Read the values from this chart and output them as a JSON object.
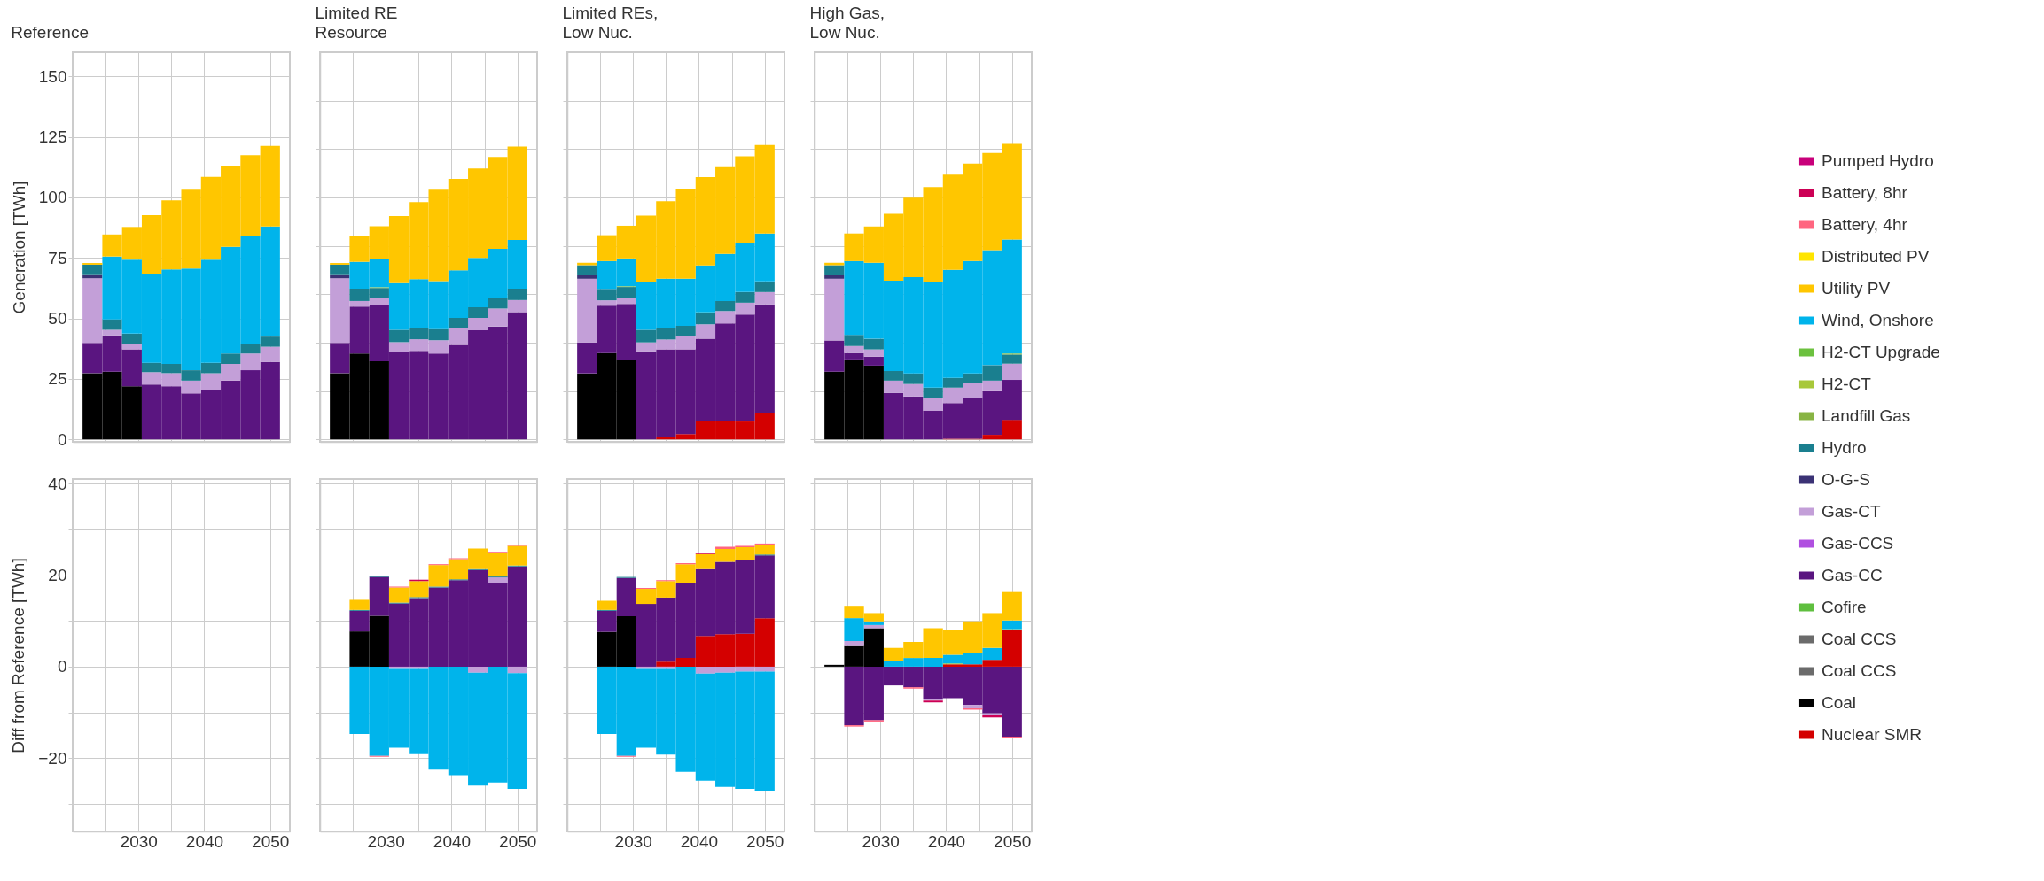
{
  "chart_data": [
    {
      "type": "bar",
      "stacked": true,
      "title": "Reference",
      "ylabel": "Generation [TWh]",
      "x": [
        2023,
        2026,
        2029,
        2032,
        2035,
        2038,
        2041,
        2044,
        2047,
        2050
      ],
      "xlim": [
        2020,
        2053
      ],
      "ylim": [
        -1,
        160
      ],
      "grid": true,
      "tick_labels": "y",
      "xticks": [
        {
          "value": 2025,
          "label": null
        },
        2030,
        {
          "value": 2035,
          "label": null
        },
        2040,
        {
          "value": 2045,
          "label": null
        },
        2050
      ],
      "yticks": [
        0,
        25,
        50,
        75,
        100,
        125,
        150
      ],
      "series": [
        {
          "color": "#000000",
          "values": [
            27.4,
            28,
            22,
            null,
            null,
            null,
            null,
            null,
            null,
            null
          ]
        },
        {
          "color": "#5a1580",
          "values": [
            12.5,
            15,
            15.2,
            22.7,
            22,
            19,
            20.4,
            24.3,
            28.6,
            32
          ]
        },
        {
          "color": "#c39fd8",
          "values": [
            26.7,
            2.3,
            2.2,
            5.1,
            5.4,
            5.3,
            7,
            6.9,
            6.9,
            6.3
          ]
        },
        {
          "color": "#3b3275",
          "values": [
            1.3,
            null,
            null,
            null,
            null,
            null,
            null,
            null,
            null,
            null
          ]
        },
        {
          "color": "#1a7f8f",
          "values": [
            4.3,
            4.3,
            4.3,
            3.9,
            3.8,
            4.3,
            4.3,
            4.3,
            3.9,
            4.2
          ]
        },
        {
          "color": "#00b4eb",
          "values": [
            null,
            26,
            30.6,
            36.6,
            39.1,
            42,
            42.6,
            44.1,
            44.6,
            45.5
          ]
        },
        {
          "color": "#ffc600",
          "values": [
            0.7,
            9.1,
            13.5,
            24.4,
            28.5,
            32.6,
            34.2,
            33.4,
            33.5,
            33.3
          ]
        }
      ]
    },
    {
      "type": "bar",
      "stacked": true,
      "title": "Limited RE\nResource",
      "x": [
        2023,
        2026,
        2029,
        2032,
        2035,
        2038,
        2041,
        2044,
        2047,
        2050
      ],
      "xlim": [
        2020,
        2053
      ],
      "ylim": [
        -1,
        160
      ],
      "grid": true,
      "tick_labels": false,
      "xticks": [
        {
          "value": 2025,
          "label": null
        },
        2030,
        {
          "value": 2035,
          "label": null
        },
        2040,
        {
          "value": 2045,
          "label": null
        },
        2050
      ],
      "yticks": [
        {
          "value": 0,
          "label": null
        },
        {
          "value": 20,
          "label": null
        },
        {
          "value": 40,
          "label": null
        },
        {
          "value": 60,
          "label": null
        },
        {
          "value": 80,
          "label": null
        },
        {
          "value": 100,
          "label": null
        },
        {
          "value": 120,
          "label": null
        },
        {
          "value": 140,
          "label": null
        }
      ],
      "series": [
        {
          "color": "#000000",
          "values": [
            27.4,
            35.5,
            32.3,
            null,
            null,
            null,
            null,
            null,
            null,
            null
          ]
        },
        {
          "color": "#5a1580",
          "values": [
            12.5,
            19.4,
            23.3,
            36.3,
            36.6,
            35.5,
            39.1,
            45.1,
            46.7,
            52.6
          ]
        },
        {
          "color": "#c39fd8",
          "values": [
            26.7,
            2.3,
            2.7,
            3.9,
            4.8,
            5.5,
            6.8,
            5.1,
            7.4,
            5
          ]
        },
        {
          "color": "#3b3275",
          "values": [
            1.3,
            null,
            null,
            null,
            null,
            null,
            null,
            null,
            null,
            null
          ]
        },
        {
          "color": "#1a7f8f",
          "values": [
            4.3,
            5.1,
            4.3,
            5.1,
            4.5,
            4.6,
            4.3,
            4.4,
            4.5,
            4.7
          ]
        },
        {
          "color": "#a8c83a",
          "values": [
            null,
            null,
            0.3,
            null,
            null,
            null,
            null,
            null,
            null,
            null
          ]
        },
        {
          "color": "#00b4eb",
          "values": [
            null,
            11.1,
            11.7,
            19.3,
            20.3,
            19.8,
            19.7,
            20.4,
            20.2,
            20.1
          ]
        },
        {
          "color": "#ffc600",
          "values": [
            0.7,
            10.5,
            13.5,
            27.7,
            31.9,
            37.8,
            37.8,
            37,
            37.9,
            38.6
          ]
        }
      ]
    },
    {
      "type": "bar",
      "stacked": true,
      "title": "Limited REs,\nLow Nuc.",
      "x": [
        2023,
        2026,
        2029,
        2032,
        2035,
        2038,
        2041,
        2044,
        2047,
        2050
      ],
      "xlim": [
        2020,
        2053
      ],
      "ylim": [
        -1,
        160
      ],
      "grid": true,
      "tick_labels": false,
      "xticks": [
        {
          "value": 2025,
          "label": null
        },
        2030,
        {
          "value": 2035,
          "label": null
        },
        2040,
        {
          "value": 2045,
          "label": null
        },
        2050
      ],
      "yticks": [
        {
          "value": 0,
          "label": null
        },
        {
          "value": 20,
          "label": null
        },
        {
          "value": 40,
          "label": null
        },
        {
          "value": 60,
          "label": null
        },
        {
          "value": 80,
          "label": null
        },
        {
          "value": 100,
          "label": null
        },
        {
          "value": 120,
          "label": null
        },
        {
          "value": 140,
          "label": null
        }
      ],
      "series": [
        {
          "color": "#d40000",
          "values": [
            null,
            null,
            null,
            null,
            1.2,
            2.2,
            7.4,
            7.4,
            7.4,
            11.1
          ]
        },
        {
          "color": "#000000",
          "values": [
            27.3,
            35.7,
            32.7,
            null,
            null,
            null,
            null,
            null,
            null,
            null
          ]
        },
        {
          "color": "#5a1580",
          "values": [
            12.8,
            19.6,
            23.3,
            36.4,
            36,
            35,
            34.2,
            40.5,
            44.2,
            44.7
          ]
        },
        {
          "color": "#c39fd8",
          "values": [
            26.3,
            2.2,
            2.3,
            3.7,
            4.1,
            5.3,
            6,
            5.2,
            4.9,
            5.1
          ]
        },
        {
          "color": "#3b3275",
          "values": [
            1.4,
            null,
            null,
            null,
            null,
            null,
            null,
            null,
            null,
            null
          ]
        },
        {
          "color": "#1a7f8f",
          "values": [
            4.2,
            4.7,
            4.7,
            5.2,
            4.9,
            4.4,
            4.5,
            4.1,
            4.4,
            4.4
          ]
        },
        {
          "color": "#a8c83a",
          "values": [
            null,
            null,
            0.3,
            null,
            null,
            null,
            0.4,
            null,
            null,
            null
          ]
        },
        {
          "color": "#00b4eb",
          "values": [
            null,
            11.5,
            11.5,
            19.6,
            20.2,
            19.5,
            19.4,
            19.5,
            20.2,
            19.8
          ]
        },
        {
          "color": "#ffc600",
          "values": [
            1,
            10.7,
            13.5,
            27.6,
            32,
            37.1,
            36.5,
            35.8,
            35.9,
            36.6
          ]
        }
      ]
    },
    {
      "type": "bar",
      "stacked": true,
      "title": "High Gas,\nLow Nuc.",
      "x": [
        2023,
        2026,
        2029,
        2032,
        2035,
        2038,
        2041,
        2044,
        2047,
        2050
      ],
      "xlim": [
        2020,
        2053
      ],
      "ylim": [
        -1,
        160
      ],
      "grid": true,
      "tick_labels": false,
      "legend": "right",
      "xticks": [
        {
          "value": 2025,
          "label": null
        },
        2030,
        {
          "value": 2035,
          "label": null
        },
        2040,
        {
          "value": 2045,
          "label": null
        },
        2050
      ],
      "yticks": [
        {
          "value": 0,
          "label": null
        },
        {
          "value": 20,
          "label": null
        },
        {
          "value": 40,
          "label": null
        },
        {
          "value": 60,
          "label": null
        },
        {
          "value": 80,
          "label": null
        },
        {
          "value": 100,
          "label": null
        },
        {
          "value": 120,
          "label": null
        },
        {
          "value": 140,
          "label": null
        }
      ],
      "series": [
        {
          "name": "Nuclear SMR",
          "color": "#d40000",
          "values": [
            null,
            null,
            null,
            null,
            null,
            null,
            0.3,
            0.3,
            1.9,
            8.1
          ]
        },
        {
          "name": "Coal",
          "color": "#000000",
          "values": [
            28,
            32.7,
            30.5,
            null,
            null,
            null,
            null,
            null,
            null,
            null
          ]
        },
        {
          "name": "Coal CCS",
          "color": "#6b6b6b",
          "values": [
            null,
            null,
            null,
            null,
            null,
            null,
            null,
            null,
            null,
            null
          ]
        },
        {
          "name": "Coal CCS",
          "color": "#6b6b6b",
          "values": [
            null,
            null,
            null,
            null,
            null,
            null,
            null,
            null,
            null,
            null
          ]
        },
        {
          "name": "Cofire",
          "color": "#5fbf3f",
          "values": [
            null,
            null,
            null,
            null,
            null,
            null,
            null,
            null,
            null,
            null
          ]
        },
        {
          "name": "Gas-CC",
          "color": "#5a1580",
          "values": [
            12.9,
            3,
            3.7,
            19.2,
            17.7,
            11.8,
            14.7,
            16.7,
            18,
            16.5
          ]
        },
        {
          "name": "Gas-CCS",
          "color": "#b050e0",
          "values": [
            null,
            null,
            null,
            null,
            null,
            null,
            null,
            null,
            null,
            null
          ]
        },
        {
          "name": "Gas-CT",
          "color": "#c39fd8",
          "values": [
            25.5,
            2.9,
            3,
            5.1,
            5.2,
            5.2,
            6.4,
            6.2,
            4.4,
            6.7
          ]
        },
        {
          "name": "O-G-S",
          "color": "#3b3275",
          "values": [
            1.4,
            null,
            null,
            null,
            null,
            null,
            null,
            null,
            null,
            null
          ]
        },
        {
          "name": "Hydro",
          "color": "#1a7f8f",
          "values": [
            4.2,
            4.6,
            4.4,
            4,
            4.4,
            4.4,
            4,
            4.1,
            6.4,
            3.8
          ]
        },
        {
          "name": "Landfill Gas",
          "color": "#88b444",
          "values": [
            null,
            null,
            null,
            null,
            null,
            null,
            null,
            null,
            null,
            null
          ]
        },
        {
          "name": "H2-CT",
          "color": "#a8c83a",
          "values": [
            null,
            null,
            null,
            null,
            null,
            null,
            null,
            null,
            null,
            0.4
          ]
        },
        {
          "name": "H2-CT Upgrade",
          "color": "#6cc13f",
          "values": [
            null,
            null,
            null,
            null,
            null,
            null,
            null,
            null,
            null,
            null
          ]
        },
        {
          "name": "Wind, Onshore",
          "color": "#00b4eb",
          "values": [
            null,
            30.5,
            31.4,
            37.3,
            39.8,
            43.5,
            44.7,
            46.4,
            47.5,
            47.1
          ]
        },
        {
          "name": "Utility PV",
          "color": "#ffc600",
          "values": [
            1,
            11.4,
            15,
            27.6,
            32.8,
            39.4,
            39.3,
            40.3,
            40.2,
            39.5
          ]
        },
        {
          "name": "Distributed PV",
          "color": "#ffe500",
          "values": [
            null,
            null,
            null,
            null,
            null,
            null,
            null,
            null,
            null,
            null
          ]
        },
        {
          "name": "Battery, 4hr",
          "color": "#ff6680",
          "values": [
            null,
            null,
            null,
            null,
            null,
            null,
            null,
            null,
            null,
            null
          ]
        },
        {
          "name": "Battery, 8hr",
          "color": "#cc0055",
          "values": [
            null,
            null,
            null,
            null,
            null,
            null,
            null,
            null,
            null,
            null
          ]
        },
        {
          "name": "Pumped Hydro",
          "color": "#c8007a",
          "values": [
            null,
            null,
            null,
            null,
            null,
            null,
            null,
            null,
            null,
            null
          ]
        }
      ]
    },
    {
      "type": "bar",
      "ylabel": "Diff from Reference [TWh]",
      "xlim": [
        2020,
        2053
      ],
      "ylim": [
        -36,
        41
      ],
      "grid": true,
      "xticks": [
        {
          "value": 2025,
          "label": null
        },
        2030,
        {
          "value": 2035,
          "label": null
        },
        2040,
        {
          "value": 2045,
          "label": null
        },
        2050
      ],
      "yticks": [
        {
          "value": -30,
          "label": null
        },
        {
          "value": -20,
          "label": "−20"
        },
        {
          "value": -10,
          "label": null
        },
        0,
        {
          "value": 10,
          "label": null
        },
        20,
        {
          "value": 30,
          "label": null
        },
        40
      ]
    },
    {
      "type": "bar",
      "stacked": true,
      "x": [
        2026,
        2029,
        2032,
        2035,
        2038,
        2041,
        2044,
        2047,
        2050
      ],
      "xlim": [
        2020,
        2053
      ],
      "ylim": [
        -36,
        41
      ],
      "grid": true,
      "tick_labels": "x",
      "xticks": [
        {
          "value": 2025,
          "label": null
        },
        2030,
        {
          "value": 2035,
          "label": null
        },
        2040,
        {
          "value": 2045,
          "label": null
        },
        2050
      ],
      "yticks": [
        {
          "value": -30,
          "label": null
        },
        {
          "value": -20,
          "label": null
        },
        {
          "value": -10,
          "label": null
        },
        {
          "value": 0,
          "label": null
        },
        {
          "value": 10,
          "label": null
        },
        {
          "value": 20,
          "label": null
        },
        {
          "value": 30,
          "label": null
        },
        {
          "value": 40,
          "label": null
        }
      ],
      "series": [
        {
          "color": "#000000",
          "values": [
            7.7,
            11.1,
            null,
            null,
            null,
            null,
            null,
            null,
            null
          ]
        },
        {
          "color": "#5a1580",
          "values": [
            4.5,
            8.5,
            13.8,
            15,
            17.3,
            18.9,
            21.1,
            18.3,
            21.9
          ]
        },
        {
          "color": "#c39fd8",
          "values": [
            null,
            null,
            -0.5,
            -0.5,
            null,
            null,
            -1.3,
            1.2,
            -1.4
          ]
        },
        {
          "color": "#1a7f8f",
          "values": [
            0.2,
            0.2,
            0.2,
            0.2,
            0.2,
            0.2,
            0.2,
            0.2,
            0.2
          ]
        },
        {
          "color": "#00b4eb",
          "values": [
            -14.7,
            -19.5,
            -17.2,
            -18.6,
            -22.5,
            -23.7,
            -24.7,
            -25.3,
            -25.3
          ]
        },
        {
          "color": "#ffc600",
          "values": [
            2.2,
            null,
            3.3,
            3.5,
            4.7,
            4.4,
            4.5,
            5.2,
            4.3
          ]
        },
        {
          "color": "#ff6680",
          "values": [
            null,
            -0.2,
            0.2,
            null,
            0.2,
            0.2,
            null,
            0.2,
            0.2
          ]
        },
        {
          "color": "#cc0055",
          "values": [
            null,
            null,
            null,
            0.3,
            null,
            null,
            null,
            null,
            null
          ]
        }
      ]
    },
    {
      "type": "bar",
      "stacked": true,
      "x": [
        2026,
        2029,
        2032,
        2035,
        2038,
        2041,
        2044,
        2047,
        2050
      ],
      "xlim": [
        2020,
        2053
      ],
      "ylim": [
        -36,
        41
      ],
      "grid": true,
      "tick_labels": "x",
      "xticks": [
        {
          "value": 2025,
          "label": null
        },
        2030,
        {
          "value": 2035,
          "label": null
        },
        2040,
        {
          "value": 2045,
          "label": null
        },
        2050
      ],
      "yticks": [
        {
          "value": -30,
          "label": null
        },
        {
          "value": -20,
          "label": null
        },
        {
          "value": -10,
          "label": null
        },
        {
          "value": 0,
          "label": null
        },
        {
          "value": 10,
          "label": null
        },
        {
          "value": 20,
          "label": null
        },
        {
          "value": 30,
          "label": null
        },
        {
          "value": 40,
          "label": null
        }
      ],
      "series": [
        {
          "color": "#d40000",
          "values": [
            null,
            null,
            null,
            1.1,
            1.9,
            6.7,
            7.1,
            7.2,
            10.6
          ]
        },
        {
          "color": "#000000",
          "values": [
            7.6,
            11,
            null,
            null,
            null,
            null,
            null,
            null,
            null
          ]
        },
        {
          "color": "#5a1580",
          "values": [
            4.6,
            8.4,
            13.7,
            14,
            16.4,
            14.6,
            15.8,
            16.1,
            13.7
          ]
        },
        {
          "color": "#c39fd8",
          "values": [
            null,
            null,
            -0.5,
            -0.5,
            null,
            -1.5,
            -1.3,
            -1.1,
            -1.1
          ]
        },
        {
          "color": "#1a7f8f",
          "values": [
            0.2,
            0.2,
            null,
            null,
            null,
            null,
            null,
            null,
            0.2
          ]
        },
        {
          "color": "#00b4eb",
          "values": [
            -14.7,
            -19.5,
            -17.2,
            -18.7,
            -23,
            -23.4,
            -25,
            -25.6,
            -26
          ]
        },
        {
          "color": "#ffc600",
          "values": [
            2,
            null,
            3.3,
            3.6,
            4.1,
            3.3,
            2.8,
            2.8,
            2.1
          ]
        },
        {
          "color": "#ff6680",
          "values": [
            null,
            -0.2,
            0.2,
            0.2,
            0.2,
            null,
            0.5,
            0.3,
            0.3
          ]
        },
        {
          "color": "#cc0055",
          "values": [
            null,
            null,
            null,
            null,
            null,
            0.2,
            null,
            null,
            null
          ]
        }
      ]
    },
    {
      "type": "bar",
      "stacked": true,
      "x": [
        2023,
        2026,
        2029,
        2032,
        2035,
        2038,
        2041,
        2044,
        2047,
        2050
      ],
      "xlim": [
        2020,
        2053
      ],
      "ylim": [
        -36,
        41
      ],
      "grid": true,
      "tick_labels": "x",
      "xticks": [
        {
          "value": 2025,
          "label": null
        },
        2030,
        {
          "value": 2035,
          "label": null
        },
        2040,
        {
          "value": 2045,
          "label": null
        },
        2050
      ],
      "yticks": [
        {
          "value": -30,
          "label": null
        },
        {
          "value": -20,
          "label": null
        },
        {
          "value": -10,
          "label": null
        },
        {
          "value": 0,
          "label": null
        },
        {
          "value": 10,
          "label": null
        },
        {
          "value": 20,
          "label": null
        },
        {
          "value": 30,
          "label": null
        },
        {
          "value": 40,
          "label": null
        }
      ],
      "series": [
        {
          "color": "#d40000",
          "values": [
            null,
            null,
            null,
            null,
            null,
            null,
            0.5,
            0.5,
            1.5,
            8
          ]
        },
        {
          "color": "#000000",
          "values": [
            0.4,
            4.5,
            8.4,
            null,
            null,
            null,
            null,
            null,
            null,
            null
          ]
        },
        {
          "color": "#5a1580",
          "values": [
            null,
            -12.8,
            -11.7,
            -4.1,
            -4.5,
            -7.1,
            -6.9,
            -8.4,
            -10.2,
            -15.3
          ]
        },
        {
          "color": "#c39fd8",
          "values": [
            null,
            1.1,
            0.7,
            null,
            null,
            -0.3,
            null,
            -0.7,
            -0.4,
            null
          ]
        },
        {
          "color": "#a8c83a",
          "values": [
            null,
            null,
            null,
            null,
            null,
            null,
            0.2,
            null,
            null,
            0.2
          ]
        },
        {
          "color": "#00b4eb",
          "values": [
            null,
            5,
            0.8,
            1.3,
            1.9,
            1.9,
            1.9,
            2.5,
            2.6,
            1.9
          ]
        },
        {
          "color": "#ffc600",
          "values": [
            null,
            2.7,
            1.8,
            2.8,
            3.5,
            6.5,
            5.4,
            6.9,
            7.6,
            6.2
          ]
        },
        {
          "color": "#ff6680",
          "values": [
            null,
            -0.3,
            -0.3,
            null,
            -0.3,
            null,
            null,
            -0.3,
            null,
            -0.3
          ]
        },
        {
          "color": "#cc0055",
          "values": [
            null,
            null,
            null,
            null,
            null,
            -0.4,
            null,
            null,
            -0.5,
            null
          ]
        }
      ]
    }
  ]
}
